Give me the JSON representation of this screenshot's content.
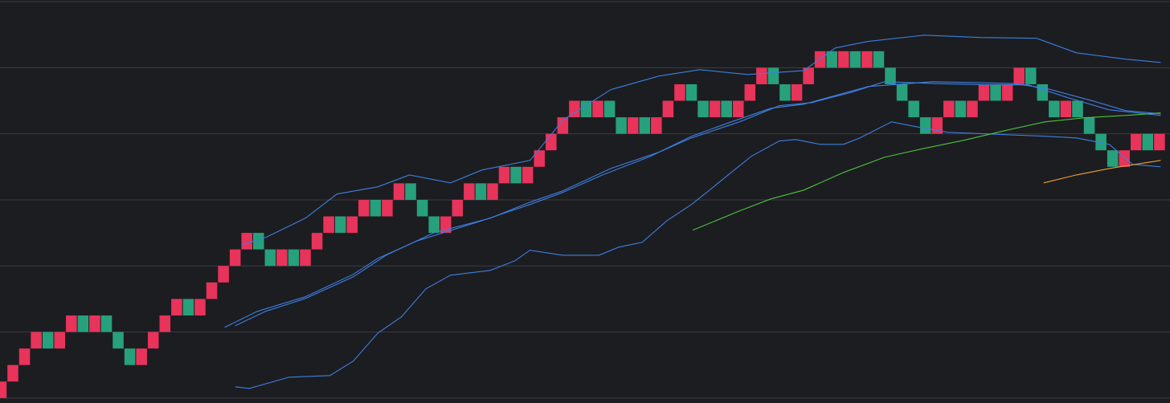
{
  "chart_data": {
    "type": "renko",
    "up_color": "#e8335a",
    "down_color": "#26a17b",
    "grid": true,
    "xlim": [
      0.4,
      100.4
    ],
    "ylim": [
      -0.3,
      24.1
    ],
    "yticks": [
      0,
      4,
      8,
      12,
      16,
      20,
      24
    ],
    "open": [
      0,
      1,
      2,
      3,
      4,
      3,
      4,
      5,
      4,
      5,
      4,
      3,
      2,
      3,
      4,
      5,
      6,
      5,
      6,
      7,
      8,
      9,
      10,
      9,
      8,
      9,
      8,
      9,
      10,
      11,
      10,
      11,
      12,
      11,
      12,
      13,
      12,
      11,
      10,
      11,
      12,
      13,
      12,
      13,
      14,
      13,
      14,
      15,
      16,
      17,
      18,
      17,
      18,
      17,
      16,
      17,
      16,
      17,
      18,
      19,
      18,
      17,
      18,
      17,
      18,
      19,
      20,
      19,
      18,
      19,
      20,
      21,
      20,
      21,
      20,
      21,
      20,
      19,
      18,
      17,
      16,
      17,
      18,
      17,
      18,
      19,
      18,
      19,
      20,
      19,
      18,
      17,
      18,
      17,
      16,
      15,
      14,
      15,
      16,
      15
    ],
    "close": [
      1,
      2,
      3,
      4,
      3,
      4,
      5,
      4,
      5,
      4,
      3,
      2,
      3,
      4,
      5,
      6,
      5,
      6,
      7,
      8,
      9,
      10,
      9,
      8,
      9,
      8,
      9,
      10,
      11,
      10,
      11,
      12,
      11,
      12,
      13,
      12,
      11,
      10,
      11,
      12,
      13,
      12,
      13,
      14,
      13,
      14,
      15,
      16,
      17,
      18,
      17,
      18,
      17,
      16,
      17,
      16,
      17,
      18,
      19,
      18,
      17,
      18,
      17,
      18,
      19,
      20,
      19,
      18,
      19,
      20,
      21,
      20,
      21,
      20,
      21,
      20,
      19,
      18,
      17,
      16,
      17,
      18,
      17,
      18,
      19,
      18,
      19,
      20,
      19,
      18,
      17,
      18,
      17,
      16,
      15,
      14,
      15,
      16,
      15,
      16
    ],
    "lines": [
      {
        "color": "#3d7fe0",
        "x": [
          21.1,
          23.1,
          26.5,
          29.2,
          32.7,
          35.4,
          38.9,
          41.6,
          45.7,
          48.5,
          52.6,
          56.7,
          60.2,
          64.3,
          69.1,
          71.8,
          74.6,
          79.4,
          84.2,
          89.0,
          92.4,
          96.6,
          99.6
        ],
        "values": [
          9.29,
          9.72,
          10.89,
          12.35,
          12.79,
          13.51,
          13.03,
          13.81,
          14.39,
          16.82,
          18.67,
          19.49,
          19.88,
          19.59,
          19.83,
          21.2,
          21.59,
          21.97,
          21.83,
          21.78,
          20.9,
          20.52,
          20.32
        ]
      },
      {
        "color": "#3d7fe0",
        "x": [
          20.5,
          23.1,
          26.5,
          30.6,
          33.4,
          37.5,
          42.3,
          45.7,
          48.5,
          52.6,
          56.7,
          59.5,
          63.6,
          67.0,
          69.8,
          73.2,
          76.0,
          80.1,
          84.9,
          88.3,
          91.7,
          95.2,
          99.6
        ],
        "values": [
          4.38,
          5.25,
          6.03,
          7.34,
          8.65,
          10.01,
          10.89,
          11.86,
          12.54,
          13.9,
          14.88,
          15.75,
          16.72,
          17.7,
          17.89,
          18.52,
          19.15,
          19.05,
          18.96,
          18.96,
          18.18,
          17.45,
          17.11
        ]
      },
      {
        "color": "#3d7fe0",
        "x": [
          19.6,
          22.4,
          26.5,
          30.6,
          32.7,
          36.1,
          41.6,
          45.7,
          48.5,
          51.9,
          56.0,
          59.5,
          62.9,
          66.3,
          69.1,
          74.6,
          80.1,
          86.9,
          89.7,
          93.8,
          96.6,
          99.6
        ],
        "values": [
          4.28,
          5.25,
          6.13,
          7.49,
          8.46,
          9.53,
          10.74,
          11.72,
          12.45,
          13.51,
          14.63,
          15.85,
          16.72,
          17.55,
          17.79,
          18.86,
          19.15,
          19.05,
          18.77,
          17.99,
          17.4,
          17.21
        ]
      },
      {
        "color": "#3d7fe0",
        "x": [
          20.5,
          21.7,
          25.1,
          28.6,
          30.6,
          32.7,
          34.7,
          36.8,
          38.9,
          42.3,
          44.4,
          45.7,
          48.5,
          51.6,
          53.3,
          55.3,
          57.4,
          59.5,
          60.8,
          62.9,
          64.6,
          67.0,
          68.4,
          70.5,
          72.5,
          73.9,
          76.6,
          78.7,
          81.4,
          86.3,
          89.7,
          92.4,
          95.2,
          97.2,
          99.6
        ],
        "values": [
          0.68,
          0.58,
          1.26,
          1.36,
          2.24,
          3.94,
          4.91,
          6.61,
          7.44,
          7.73,
          8.31,
          8.95,
          8.65,
          8.65,
          9.14,
          9.43,
          10.74,
          11.72,
          12.45,
          13.66,
          14.63,
          15.56,
          15.65,
          15.36,
          15.36,
          15.75,
          16.72,
          16.43,
          16.09,
          15.95,
          15.85,
          15.75,
          15.36,
          14.15,
          14.0
        ]
      },
      {
        "color": "#4cc43c",
        "x": [
          59.6,
          63.6,
          66.3,
          69.1,
          72.5,
          76.0,
          79.4,
          82.8,
          86.3,
          89.7,
          93.1,
          96.6,
          99.6
        ],
        "values": [
          10.16,
          11.33,
          12.06,
          12.59,
          13.66,
          14.58,
          15.12,
          15.61,
          16.19,
          16.72,
          16.97,
          17.11,
          17.26
        ]
      },
      {
        "color": "#f0a030",
        "x": [
          89.6,
          92.4,
          95.2,
          97.9,
          99.6
        ],
        "values": [
          13.03,
          13.51,
          13.9,
          14.2,
          14.39
        ]
      }
    ]
  }
}
